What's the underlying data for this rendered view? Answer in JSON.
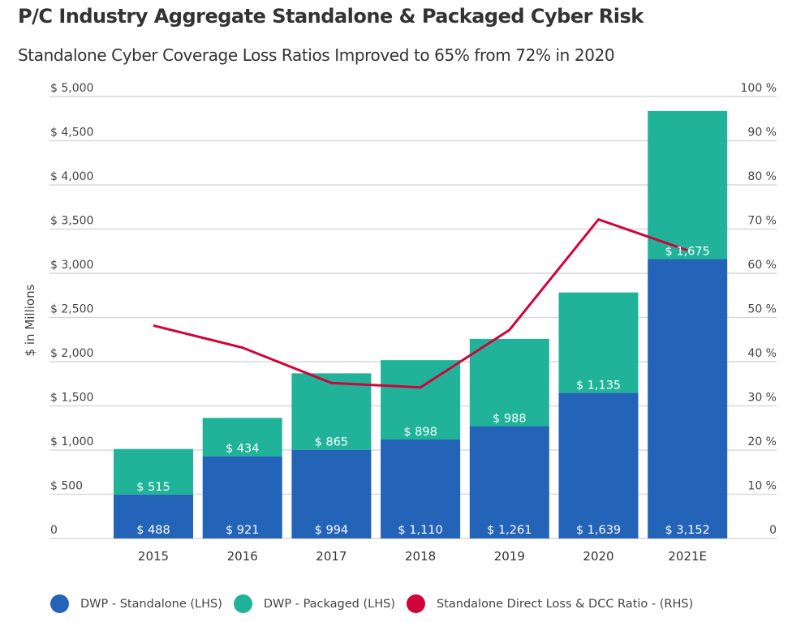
{
  "chart_data": {
    "type": "bar",
    "stacked": true,
    "title": "P/C Industry Aggregate Standalone & Packaged Cyber Risk",
    "subtitle": "Standalone Cyber Coverage Loss Ratios Improved to 65% from 72% in 2020",
    "ylabel": "$ in Millions",
    "ylabel_right": "",
    "xlabel": "",
    "categories": [
      "2015",
      "2016",
      "2017",
      "2018",
      "2019",
      "2020",
      "2021E"
    ],
    "ylim": [
      0,
      5000
    ],
    "ylim_right": [
      0,
      100
    ],
    "yticks": [
      "0",
      "$ 500",
      "$ 1,000",
      "$ 1,500",
      "$ 2,000",
      "$ 2,500",
      "$ 3,000",
      "$ 3,500",
      "$ 4,000",
      "$ 4,500",
      "$ 5,000"
    ],
    "yticks_right": [
      "0",
      "10 %",
      "20 %",
      "30 %",
      "40 %",
      "50 %",
      "60 %",
      "70 %",
      "80 %",
      "90 %",
      "100 %"
    ],
    "grid": true,
    "legend_position": "bottom",
    "series": [
      {
        "name": "DWP - Standalone (LHS)",
        "type": "bar",
        "axis": "left",
        "color": "#2363B8",
        "values": [
          488,
          921,
          994,
          1110,
          1261,
          1639,
          3152
        ],
        "labels": [
          "$ 488",
          "$ 921",
          "$ 994",
          "$ 1,110",
          "$ 1,261",
          "$ 1,639",
          "$ 3,152"
        ]
      },
      {
        "name": "DWP - Packaged (LHS)",
        "type": "bar",
        "axis": "left",
        "color": "#20B39A",
        "values": [
          515,
          434,
          865,
          898,
          988,
          1135,
          1675
        ],
        "labels": [
          "$ 515",
          "$ 434",
          "$ 865",
          "$ 898",
          "$ 988",
          "$ 1,135",
          "$ 1,675"
        ]
      },
      {
        "name": "Standalone Direct Loss & DCC Ratio - (RHS)",
        "type": "line",
        "axis": "right",
        "color": "#D0033A",
        "values": [
          48,
          43,
          35,
          34,
          47,
          72,
          65
        ]
      }
    ]
  }
}
